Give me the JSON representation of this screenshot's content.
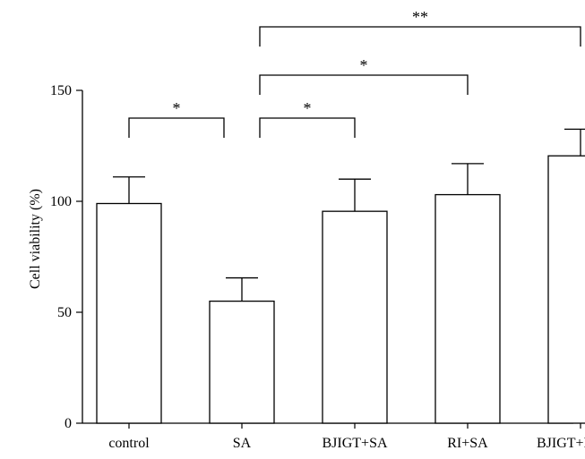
{
  "chart_data": {
    "type": "bar",
    "title": "",
    "xlabel": "",
    "ylabel": "Cell viability (%)",
    "ylim": [
      0,
      150
    ],
    "yticks": [
      0,
      50,
      100,
      150
    ],
    "grid": false,
    "legend": "none",
    "categories": [
      "control",
      "SA",
      "BJIGT+SA",
      "RI+SA",
      "BJIGT+RI+SA"
    ],
    "values": [
      99,
      55,
      95.5,
      103,
      120.5
    ],
    "errors": [
      12,
      10.5,
      14.5,
      14,
      12
    ],
    "bar_fill": "#ffffff",
    "stroke_color": "#000000",
    "significance": [
      {
        "from": "control",
        "to": "SA",
        "label": "*"
      },
      {
        "from": "SA",
        "to": "BJIGT+SA",
        "label": "*"
      },
      {
        "from": "SA",
        "to": "RI+SA",
        "label": "*"
      },
      {
        "from": "SA",
        "to": "BJIGT+RI+SA",
        "label": "**"
      }
    ]
  }
}
